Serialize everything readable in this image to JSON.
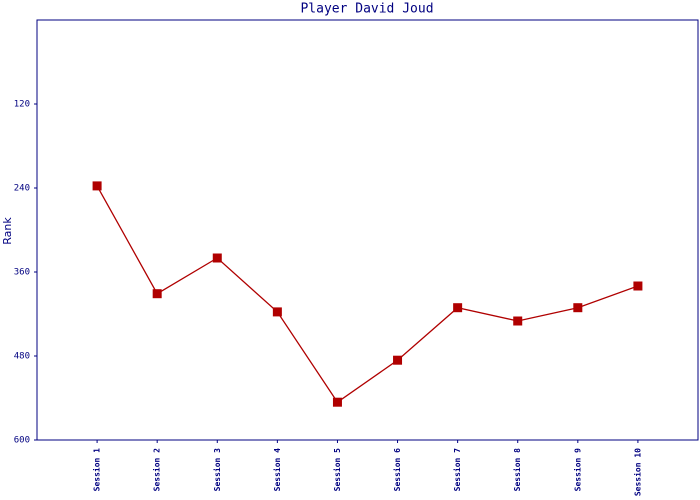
{
  "chart_data": {
    "type": "line",
    "title": "Player David Joud",
    "y_label": "Rank",
    "categories": [
      "Session 1",
      "Session 2",
      "Session 3",
      "Session 4",
      "Session 5",
      "Session 6",
      "Session 7",
      "Session 8",
      "Session 9",
      "Session 10"
    ],
    "values": [
      237,
      391,
      340,
      417,
      546,
      486,
      411,
      430,
      411,
      380
    ],
    "color": "#b00000",
    "ylim": [
      0,
      600
    ],
    "yticks": [
      120,
      240,
      360,
      480,
      600
    ],
    "invert_y": true
  }
}
